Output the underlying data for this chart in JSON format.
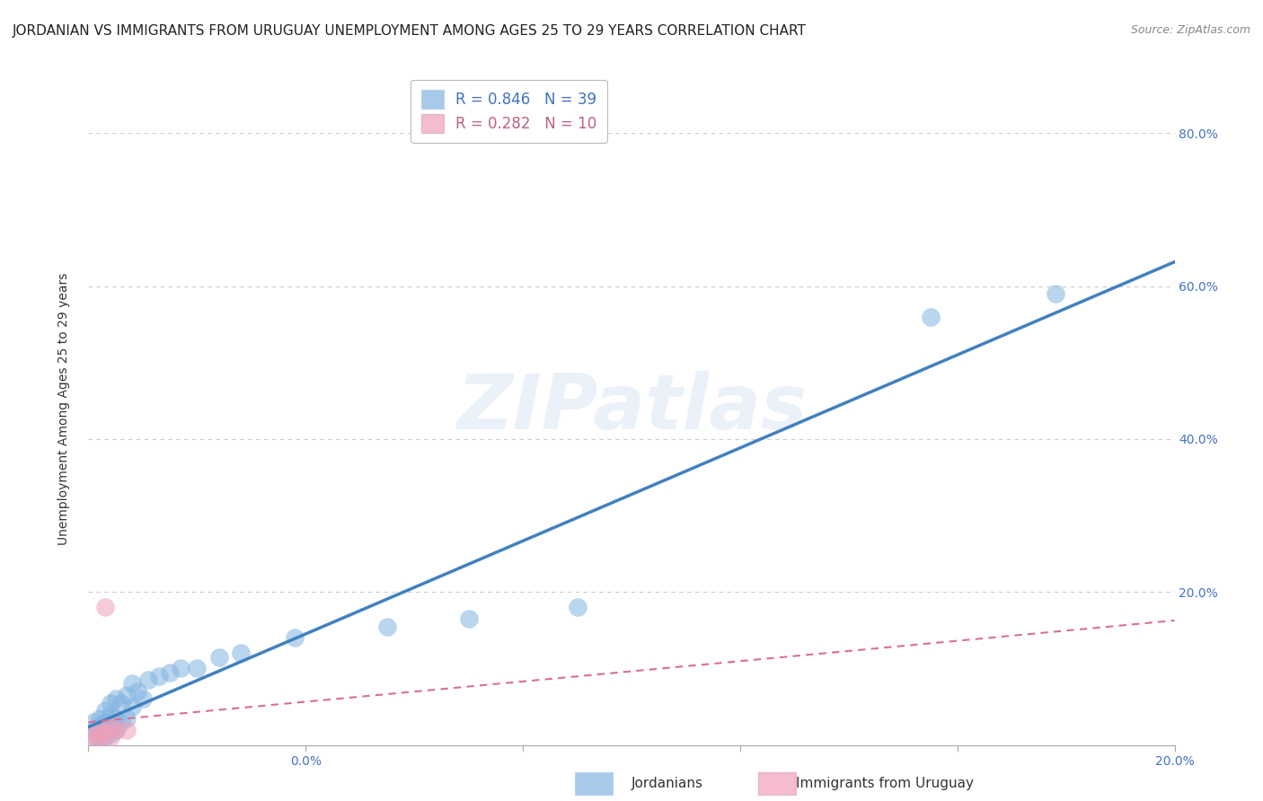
{
  "title": "JORDANIAN VS IMMIGRANTS FROM URUGUAY UNEMPLOYMENT AMONG AGES 25 TO 29 YEARS CORRELATION CHART",
  "source": "Source: ZipAtlas.com",
  "ylabel": "Unemployment Among Ages 25 to 29 years",
  "xlim": [
    0.0,
    0.2
  ],
  "ylim": [
    0.0,
    0.88
  ],
  "xticks_shown": [
    0.0,
    0.2
  ],
  "yticks": [
    0.2,
    0.4,
    0.6,
    0.8
  ],
  "xtick_minor": [
    0.04,
    0.08,
    0.12,
    0.16
  ],
  "background_color": "#ffffff",
  "watermark_text": "ZIPatlas",
  "jordanians": {
    "color": "#82b4e0",
    "R": 0.846,
    "N": 39,
    "line_color": "#4080c0",
    "x": [
      0.001,
      0.001,
      0.001,
      0.002,
      0.002,
      0.002,
      0.002,
      0.003,
      0.003,
      0.003,
      0.003,
      0.004,
      0.004,
      0.004,
      0.004,
      0.005,
      0.005,
      0.005,
      0.006,
      0.006,
      0.007,
      0.007,
      0.008,
      0.008,
      0.009,
      0.01,
      0.011,
      0.013,
      0.015,
      0.017,
      0.02,
      0.024,
      0.028,
      0.038,
      0.055,
      0.07,
      0.09,
      0.155,
      0.178
    ],
    "y": [
      0.01,
      0.02,
      0.03,
      0.008,
      0.015,
      0.025,
      0.035,
      0.01,
      0.02,
      0.03,
      0.045,
      0.015,
      0.025,
      0.04,
      0.055,
      0.02,
      0.035,
      0.06,
      0.03,
      0.055,
      0.035,
      0.065,
      0.05,
      0.08,
      0.07,
      0.06,
      0.085,
      0.09,
      0.095,
      0.1,
      0.1,
      0.115,
      0.12,
      0.14,
      0.155,
      0.165,
      0.18,
      0.56,
      0.59
    ]
  },
  "uruguay": {
    "color": "#f0a0b8",
    "R": 0.282,
    "N": 10,
    "line_color": "#d87090",
    "x": [
      0.001,
      0.001,
      0.002,
      0.002,
      0.003,
      0.003,
      0.004,
      0.004,
      0.005,
      0.007
    ],
    "y": [
      0.005,
      0.015,
      0.01,
      0.02,
      0.015,
      0.18,
      0.01,
      0.025,
      0.02,
      0.02
    ]
  },
  "grid_color": "#cccccc",
  "title_fontsize": 11,
  "axis_label_fontsize": 10,
  "tick_label_color": "#4472c4",
  "tick_label_fontsize": 10,
  "legend_R_color_blue": "#4472c4",
  "legend_R_color_pink": "#c06080"
}
